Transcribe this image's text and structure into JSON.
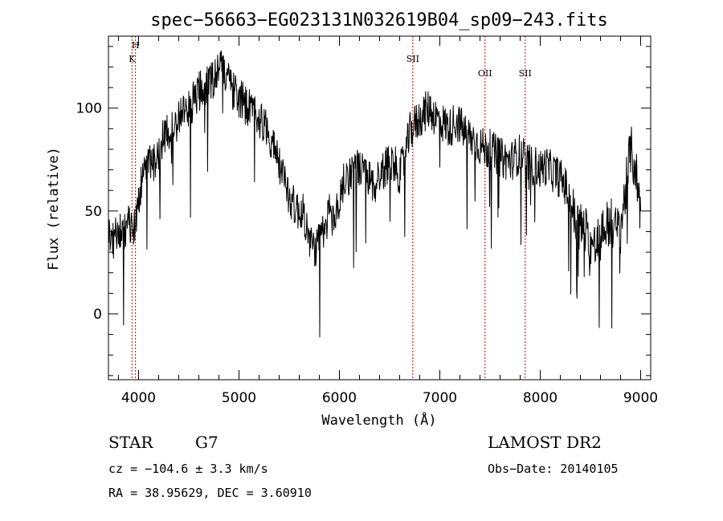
{
  "chart_data": {
    "type": "line",
    "title": "spec−56663−EG023131N032619B04_sp09−243.fits",
    "xlabel": "Wavelength (Å)",
    "ylabel": "Flux (relative)",
    "xlim": [
      3700,
      9100
    ],
    "ylim": [
      -32,
      135
    ],
    "x_ticks": [
      4000,
      5000,
      6000,
      7000,
      8000,
      9000
    ],
    "x_tick_labels": [
      "4000",
      "5000",
      "6000",
      "7000",
      "8000",
      "9000"
    ],
    "y_ticks": [
      0,
      50,
      100
    ],
    "y_tick_labels": [
      "0",
      "50",
      "100"
    ],
    "grid": false,
    "line_color": "#000000",
    "marker_color": "#cc0000",
    "spectral_lines": [
      {
        "label": "K",
        "wavelength": 3934
      },
      {
        "label": "H",
        "wavelength": 3969
      },
      {
        "label": "SII",
        "wavelength": 6731
      },
      {
        "label": "OII",
        "wavelength": 7450
      },
      {
        "label": "SII",
        "wavelength": 7850
      }
    ],
    "series": [
      {
        "x": [
          3700,
          3750,
          3800,
          3850,
          3900,
          3950,
          4000,
          4050,
          4100,
          4150,
          4200,
          4250,
          4300,
          4350,
          4400,
          4450,
          4500,
          4550,
          4600,
          4650,
          4700,
          4750,
          4800,
          4850,
          4900,
          4950,
          5000,
          5050,
          5100,
          5150,
          5200,
          5250,
          5300,
          5350,
          5400,
          5450,
          5500,
          5550,
          5600,
          5650,
          5700,
          5750,
          5800,
          5850,
          5900,
          5950,
          6000,
          6050,
          6100,
          6150,
          6200,
          6250,
          6300,
          6350,
          6400,
          6450,
          6500,
          6550,
          6600,
          6650,
          6700,
          6750,
          6800,
          6850,
          6900,
          6950,
          7000,
          7050,
          7100,
          7150,
          7200,
          7250,
          7300,
          7350,
          7400,
          7450,
          7500,
          7550,
          7600,
          7650,
          7700,
          7750,
          7800,
          7850,
          7900,
          7950,
          8000,
          8050,
          8100,
          8150,
          8200,
          8250,
          8300,
          8350,
          8400,
          8450,
          8500,
          8550,
          8600,
          8650,
          8700,
          8750,
          8800,
          8850,
          8900,
          8950,
          9000
        ],
        "y": [
          40,
          35,
          42,
          38,
          45,
          40,
          55,
          70,
          75,
          72,
          80,
          85,
          88,
          92,
          95,
          98,
          100,
          104,
          108,
          110,
          112,
          115,
          120,
          118,
          112,
          108,
          105,
          102,
          100,
          98,
          96,
          92,
          88,
          80,
          72,
          65,
          58,
          52,
          50,
          48,
          35,
          32,
          35,
          40,
          50,
          45,
          55,
          65,
          68,
          72,
          70,
          68,
          65,
          62,
          68,
          70,
          75,
          72,
          68,
          75,
          88,
          92,
          95,
          98,
          100,
          96,
          94,
          92,
          90,
          94,
          92,
          88,
          86,
          84,
          82,
          80,
          80,
          78,
          76,
          75,
          74,
          76,
          78,
          75,
          72,
          72,
          70,
          72,
          70,
          68,
          66,
          62,
          55,
          45,
          42,
          40,
          35,
          32,
          38,
          42,
          45,
          40,
          42,
          60,
          80,
          70,
          50
        ]
      }
    ]
  },
  "footer": {
    "object_class": "STAR",
    "subclass": "G7",
    "survey": "LAMOST DR2",
    "cz": "cz = −104.6 ± 3.3 km/s",
    "obs_date": "Obs−Date: 20140105",
    "coords": "RA =  38.95629, DEC =   3.60910"
  }
}
